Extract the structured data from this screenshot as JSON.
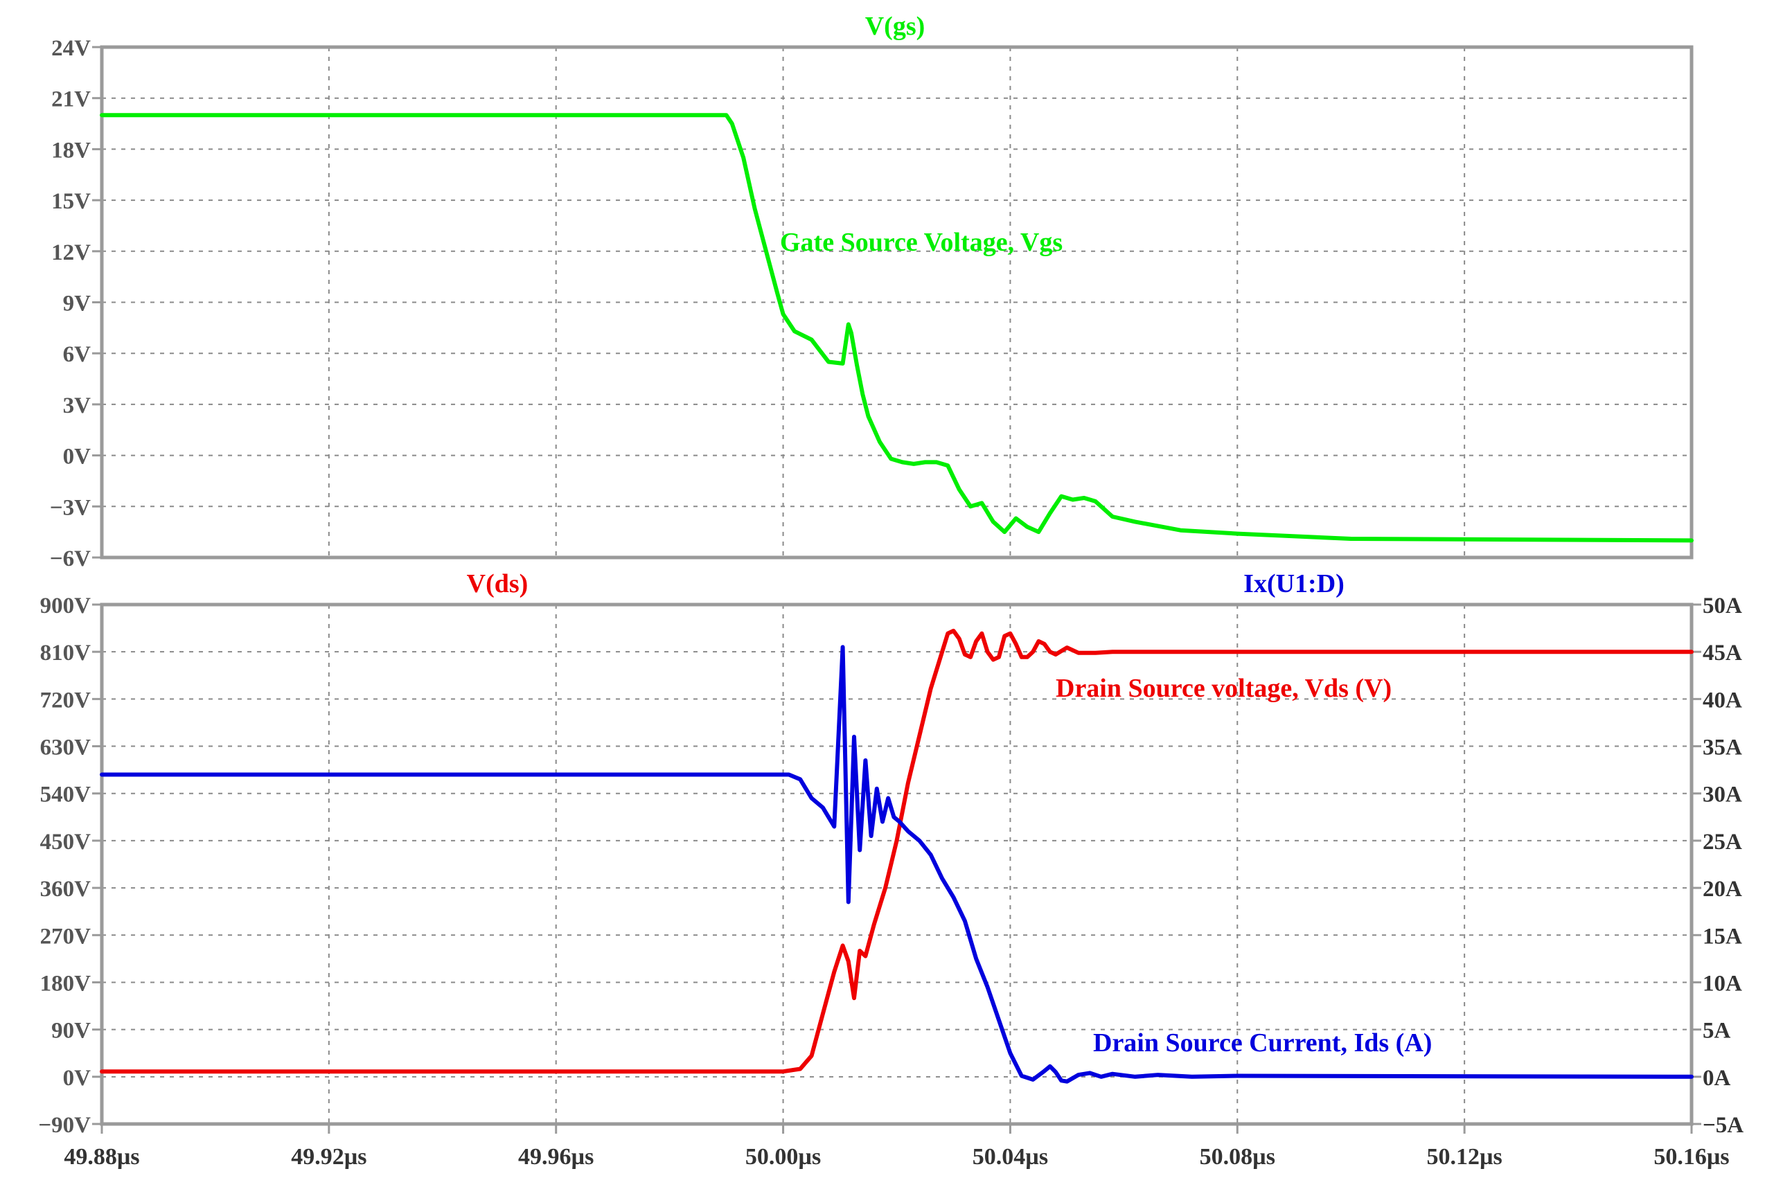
{
  "chart_data": [
    {
      "type": "line",
      "title": "V(gs)",
      "annotation": "Gate Source Voltage, Vgs",
      "colors": {
        "trace": "#00ee00"
      },
      "xlim": [
        49.88,
        50.16
      ],
      "ylim": [
        -6,
        24
      ],
      "y_ticks": [
        "24V",
        "21V",
        "18V",
        "15V",
        "12V",
        "9V",
        "6V",
        "3V",
        "0V",
        "−3V",
        "−6V"
      ],
      "grid": true,
      "series": [
        {
          "x": [
            49.88,
            49.965,
            49.99,
            49.991,
            49.993,
            49.995,
            49.997,
            49.999,
            50.0,
            50.002,
            50.005,
            50.008,
            50.0105,
            50.0115,
            50.012,
            50.013,
            50.014,
            50.015,
            50.017,
            50.019,
            50.021,
            50.023,
            50.025,
            50.027,
            50.029,
            50.031,
            50.033,
            50.035,
            50.037,
            50.039,
            50.041,
            50.043,
            50.045,
            50.047,
            50.049,
            50.051,
            50.053,
            50.055,
            50.058,
            50.062,
            50.07,
            50.08,
            50.1,
            50.16
          ],
          "y": [
            20,
            20,
            20,
            19.5,
            17.5,
            14.5,
            12,
            9.5,
            8.3,
            7.3,
            6.8,
            5.5,
            5.4,
            7.7,
            7.2,
            5.3,
            3.6,
            2.3,
            0.8,
            -0.2,
            -0.4,
            -0.5,
            -0.4,
            -0.4,
            -0.6,
            -2.0,
            -3.0,
            -2.8,
            -3.9,
            -4.5,
            -3.7,
            -4.2,
            -4.5,
            -3.4,
            -2.4,
            -2.6,
            -2.5,
            -2.7,
            -3.6,
            -3.9,
            -4.4,
            -4.6,
            -4.9,
            -5.0
          ]
        }
      ]
    },
    {
      "type": "line",
      "xlim": [
        49.88,
        50.16
      ],
      "x_ticks": [
        "49.88µs",
        "49.92µs",
        "49.96µs",
        "50.00µs",
        "50.04µs",
        "50.08µs",
        "50.12µs",
        "50.16µs"
      ],
      "grid": true,
      "left_axis": {
        "title": "V(ds)",
        "ylim": [
          -90,
          900
        ],
        "ticks": [
          "900V",
          "810V",
          "720V",
          "630V",
          "540V",
          "450V",
          "360V",
          "270V",
          "180V",
          "90V",
          "0V",
          "−90V"
        ]
      },
      "right_axis": {
        "title": "Ix(U1:D)",
        "ylim": [
          -5,
          50
        ],
        "ticks": [
          "50A",
          "45A",
          "40A",
          "35A",
          "30A",
          "25A",
          "20A",
          "15A",
          "10A",
          "5A",
          "0A",
          "−5A"
        ]
      },
      "colors": {
        "vds": "#ee0000",
        "ids": "#0000dd"
      },
      "series": [
        {
          "name": "Drain Source voltage, Vds (V)",
          "axis": "left",
          "x": [
            49.88,
            50.0,
            50.003,
            50.005,
            50.007,
            50.009,
            50.0105,
            50.0115,
            50.0125,
            50.0135,
            50.0145,
            50.016,
            50.018,
            50.02,
            50.022,
            50.024,
            50.026,
            50.028,
            50.029,
            50.03,
            50.031,
            50.032,
            50.033,
            50.034,
            50.035,
            50.036,
            50.037,
            50.038,
            50.039,
            50.04,
            50.041,
            50.042,
            50.043,
            50.044,
            50.045,
            50.046,
            50.047,
            50.048,
            50.05,
            50.052,
            50.055,
            50.058,
            50.06,
            50.062,
            50.16
          ],
          "y": [
            10,
            10,
            15,
            40,
            120,
            200,
            250,
            220,
            150,
            240,
            230,
            290,
            360,
            450,
            560,
            650,
            740,
            810,
            845,
            850,
            835,
            805,
            800,
            830,
            845,
            810,
            795,
            800,
            840,
            845,
            825,
            800,
            800,
            810,
            830,
            825,
            810,
            805,
            818,
            808,
            808,
            810,
            810,
            810,
            810
          ]
        },
        {
          "name": "Drain Source Current, Ids (A)",
          "axis": "right",
          "x": [
            49.88,
            50.001,
            50.003,
            50.005,
            50.007,
            50.009,
            50.0105,
            50.0115,
            50.0125,
            50.0135,
            50.0145,
            50.0155,
            50.0165,
            50.0175,
            50.0185,
            50.0195,
            50.0205,
            50.022,
            50.024,
            50.026,
            50.028,
            50.03,
            50.032,
            50.034,
            50.036,
            50.038,
            50.04,
            50.042,
            50.044,
            50.046,
            50.047,
            50.048,
            50.049,
            50.05,
            50.052,
            50.054,
            50.056,
            50.058,
            50.062,
            50.066,
            50.072,
            50.08,
            50.16
          ],
          "y": [
            32,
            32,
            31.5,
            29.5,
            28.5,
            26.5,
            45.5,
            18.5,
            36.0,
            24.0,
            33.5,
            25.5,
            30.5,
            27.0,
            29.5,
            27.5,
            27.0,
            26.0,
            25.0,
            23.5,
            21.0,
            19.0,
            16.5,
            12.5,
            9.5,
            6.0,
            2.5,
            0.1,
            -0.3,
            0.6,
            1.1,
            0.5,
            -0.4,
            -0.5,
            0.2,
            0.4,
            0.0,
            0.3,
            0.0,
            0.2,
            0.0,
            0.1,
            0.0
          ]
        }
      ]
    }
  ]
}
